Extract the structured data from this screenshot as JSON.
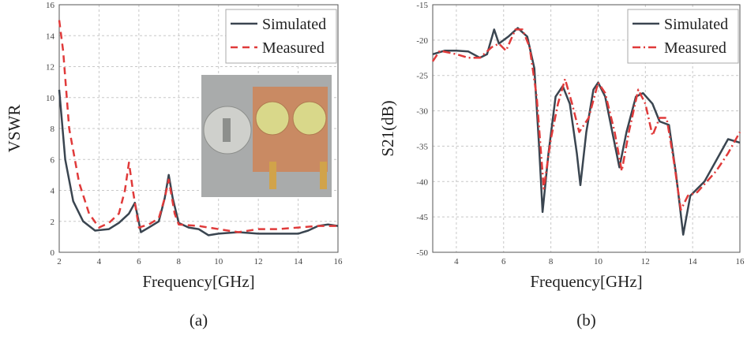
{
  "chart_data": [
    {
      "type": "line",
      "caption": "(a)",
      "x_label": "Frequency[GHz]",
      "y_label": "VSWR",
      "xlim": [
        2,
        16
      ],
      "xticks": [
        2,
        4,
        6,
        8,
        10,
        12,
        14,
        16
      ],
      "ylim": [
        0,
        16
      ],
      "yticks": [
        0,
        2,
        4,
        6,
        8,
        10,
        12,
        14,
        16
      ],
      "grid": true,
      "legend": "upper right",
      "series": [
        {
          "name": "Simulated",
          "color": "#3a4550",
          "dash": "solid",
          "x": [
            2,
            2.3,
            2.7,
            3.2,
            3.8,
            4.5,
            5,
            5.5,
            5.8,
            6.1,
            6.5,
            7,
            7.3,
            7.5,
            7.7,
            8,
            8.5,
            9,
            9.5,
            10,
            11,
            12,
            13,
            14,
            14.5,
            15,
            15.5,
            16
          ],
          "values": [
            10.5,
            6,
            3.3,
            2,
            1.4,
            1.5,
            1.9,
            2.5,
            3.2,
            1.3,
            1.6,
            2,
            3.5,
            5,
            3.5,
            1.9,
            1.6,
            1.5,
            1.1,
            1.2,
            1.3,
            1.2,
            1.2,
            1.2,
            1.4,
            1.7,
            1.8,
            1.7
          ]
        },
        {
          "name": "Measured",
          "color": "#e03a3a",
          "dash": "dashed",
          "x": [
            2,
            2.2,
            2.5,
            3,
            3.5,
            4,
            4.5,
            5,
            5.3,
            5.5,
            5.7,
            6,
            6.5,
            7,
            7.3,
            7.5,
            7.8,
            8,
            9,
            10,
            11,
            12,
            13,
            14,
            15,
            16
          ],
          "values": [
            15,
            13,
            8,
            4.5,
            2.5,
            1.6,
            1.9,
            2.5,
            4,
            5.8,
            4,
            1.6,
            1.8,
            2.2,
            3.5,
            4.7,
            2.5,
            1.8,
            1.7,
            1.5,
            1.3,
            1.5,
            1.5,
            1.6,
            1.7,
            1.7
          ]
        }
      ]
    },
    {
      "type": "line",
      "caption": "(b)",
      "x_label": "Frequency[GHz]",
      "y_label": "S21(dB)",
      "xlim": [
        3,
        16
      ],
      "xticks": [
        4,
        6,
        8,
        10,
        12,
        14,
        16
      ],
      "ylim": [
        -50,
        -15
      ],
      "yticks": [
        -50,
        -45,
        -40,
        -35,
        -30,
        -25,
        -20,
        -15
      ],
      "grid": true,
      "legend": "upper right",
      "series": [
        {
          "name": "Simulated",
          "color": "#3a4550",
          "dash": "solid",
          "x": [
            3,
            3.5,
            4,
            4.5,
            5,
            5.3,
            5.6,
            5.8,
            6.2,
            6.6,
            7,
            7.3,
            7.5,
            7.65,
            7.9,
            8.2,
            8.5,
            8.8,
            9.1,
            9.25,
            9.5,
            9.8,
            10,
            10.3,
            10.6,
            10.9,
            11.2,
            11.6,
            11.9,
            12.3,
            12.6,
            13,
            13.3,
            13.6,
            13.9,
            14.5,
            15,
            15.5,
            16
          ],
          "values": [
            -22,
            -21.5,
            -21.5,
            -21.6,
            -22.5,
            -22,
            -18.5,
            -20.5,
            -19.5,
            -18.3,
            -19.5,
            -24,
            -35,
            -44.3,
            -36,
            -28,
            -26.5,
            -29,
            -36,
            -40.5,
            -33,
            -27,
            -26,
            -28,
            -33,
            -38,
            -33,
            -28,
            -27.5,
            -29,
            -31.5,
            -32,
            -39,
            -47.5,
            -42,
            -40,
            -37,
            -34,
            -34.5
          ]
        },
        {
          "name": "Measured",
          "color": "#e03a3a",
          "dash": "dashdot",
          "x": [
            3,
            3.3,
            4,
            4.5,
            5,
            5.5,
            5.8,
            6.1,
            6.5,
            6.8,
            7.1,
            7.4,
            7.7,
            8,
            8.3,
            8.6,
            8.9,
            9.2,
            9.6,
            10,
            10.3,
            10.7,
            11,
            11.3,
            11.7,
            12,
            12.3,
            12.6,
            12.9,
            13.2,
            13.5,
            13.8,
            14.2,
            14.6,
            15,
            15.5,
            16
          ],
          "values": [
            -23,
            -21.5,
            -22,
            -22.5,
            -22.5,
            -21,
            -20.5,
            -21.5,
            -18.5,
            -18.5,
            -21,
            -28,
            -41,
            -34,
            -29,
            -25.5,
            -29,
            -33,
            -31,
            -26,
            -27.5,
            -33,
            -38.5,
            -33,
            -27,
            -29,
            -33.5,
            -31,
            -31,
            -37,
            -44,
            -42,
            -41.5,
            -40,
            -38.5,
            -36,
            -33
          ]
        }
      ]
    }
  ]
}
